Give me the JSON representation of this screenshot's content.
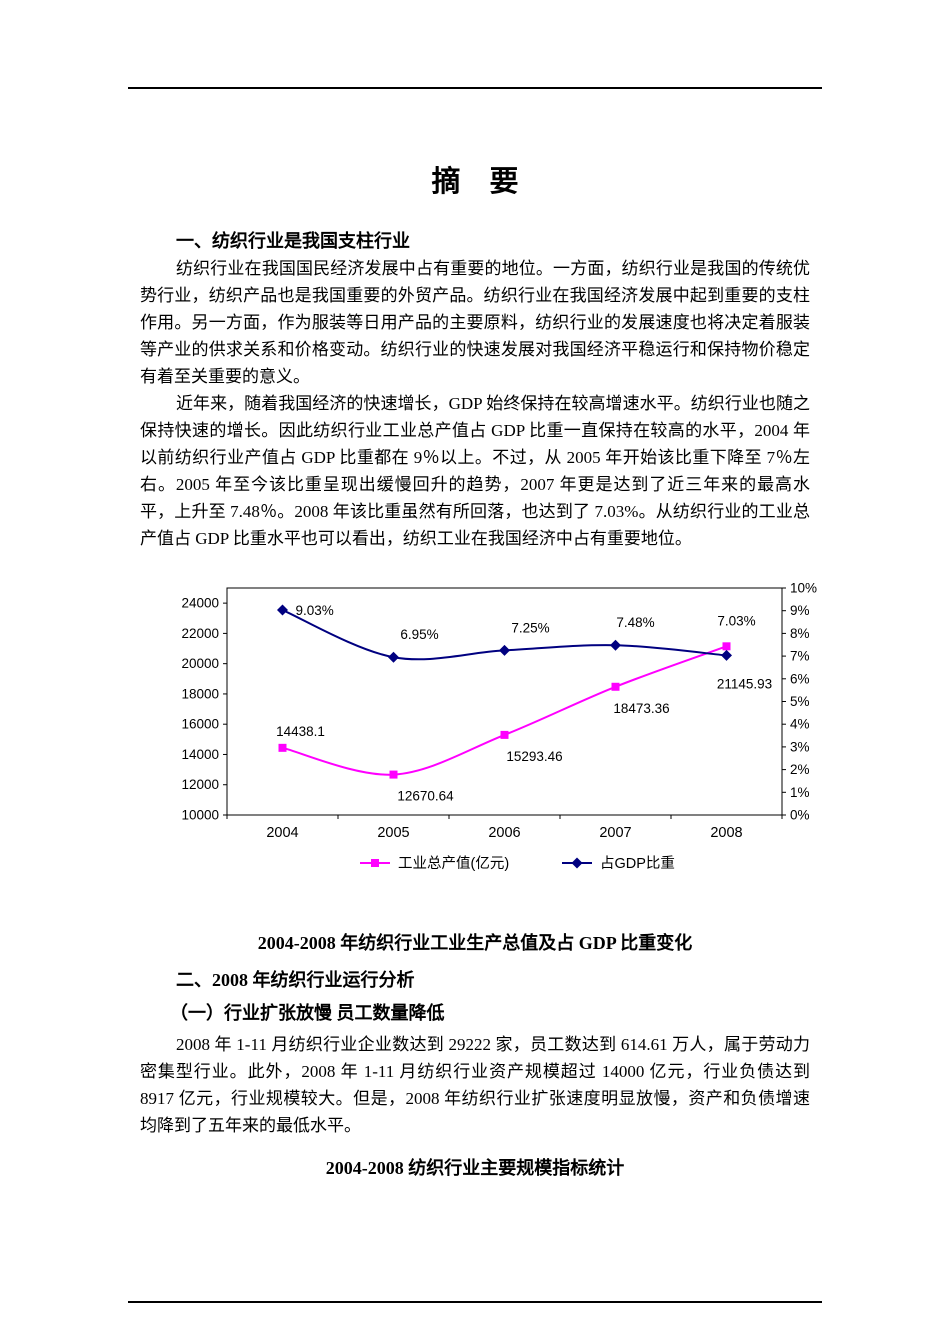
{
  "doc": {
    "title": "摘　要",
    "section1_heading": "一、纺织行业是我国支柱行业",
    "para1": "纺织行业在我国国民经济发展中占有重要的地位。一方面，纺织行业是我国的传统优势行业，纺织产品也是我国重要的外贸产品。纺织行业在我国经济发展中起到重要的支柱作用。另一方面，作为服装等日用产品的主要原料，纺织行业的发展速度也将决定着服装等产业的供求关系和价格变动。纺织行业的快速发展对我国经济平稳运行和保持物价稳定有着至关重要的意义。",
    "para2": "近年来，随着我国经济的快速增长，GDP 始终保持在较高增速水平。纺织行业也随之保持快速的增长。因此纺织行业工业总产值占 GDP 比重一直保持在较高的水平，2004 年以前纺织行业产值占 GDP 比重都在 9％以上。不过，从 2005 年开始该比重下降至 7％左右。2005 年至今该比重呈现出缓慢回升的趋势，2007 年更是达到了近三年来的最高水平，上升至 7.48％。2008 年该比重虽然有所回落，也达到了 7.03%。从纺织行业的工业总产值占 GDP 比重水平也可以看出，纺织工业在我国经济中占有重要地位。",
    "section2_heading": "二、2008 年纺织行业运行分析",
    "section2_sub_heading": "（一）行业扩张放慢 员工数量降低",
    "para3": "2008 年 1-11 月纺织行业企业数达到 29222 家，员工数达到 614.61 万人，属于劳动力密集型行业。此外，2008 年 1-11 月纺织行业资产规模超过 14000 亿元，行业负债达到 8917 亿元，行业规模较大。但是，2008 年纺织行业扩张速度明显放慢，资产和负债增速均降到了五年来的最低水平。",
    "table_title": "2004-2008 纺织行业主要规模指标统计"
  },
  "chart_data": {
    "type": "line",
    "title": "2004-2008 年纺织行业工业生产总值及占 GDP 比重变化",
    "categories": [
      "2004",
      "2005",
      "2006",
      "2007",
      "2008"
    ],
    "series": [
      {
        "name": "工业总产值(亿元)",
        "axis": "left",
        "color": "#FF00FF",
        "marker": "square",
        "values": [
          14438.1,
          12670.64,
          15293.46,
          18473.36,
          21145.93
        ],
        "labels": [
          "14438.1",
          "12670.64",
          "15293.46",
          "18473.36",
          "21145.93"
        ],
        "label_offsets": [
          [
            18,
            -12,
            "middle"
          ],
          [
            32,
            26,
            "middle"
          ],
          [
            30,
            26,
            "middle"
          ],
          [
            26,
            26,
            "middle"
          ],
          [
            18,
            42,
            "middle"
          ]
        ]
      },
      {
        "name": "占GDP比重",
        "axis": "right",
        "color": "#000080",
        "marker": "diamond",
        "values": [
          9.03,
          6.95,
          7.25,
          7.48,
          7.03
        ],
        "labels": [
          "9.03%",
          "6.95%",
          "7.25%",
          "7.48%",
          "7.03%"
        ],
        "label_offsets": [
          [
            13,
            5,
            "start"
          ],
          [
            26,
            -18,
            "middle"
          ],
          [
            26,
            -18,
            "middle"
          ],
          [
            20,
            -18,
            "middle"
          ],
          [
            10,
            -30,
            "middle"
          ]
        ]
      }
    ],
    "left_axis": {
      "min": 10000,
      "max": 25000,
      "tick_values": [
        10000,
        12000,
        14000,
        16000,
        18000,
        20000,
        22000,
        24000
      ],
      "tick_labels": [
        "10000",
        "12000",
        "14000",
        "16000",
        "18000",
        "20000",
        "22000",
        "24000"
      ]
    },
    "right_axis": {
      "min": 0,
      "max": 10,
      "tick_values": [
        0,
        1,
        2,
        3,
        4,
        5,
        6,
        7,
        8,
        9,
        10
      ],
      "tick_labels": [
        "0%",
        "1%",
        "2%",
        "3%",
        "4%",
        "5%",
        "6%",
        "7%",
        "8%",
        "9%",
        "10%"
      ]
    },
    "legend": [
      "工业总产值(亿元)",
      "占GDP比重"
    ],
    "legend_position": "bottom",
    "grid": false
  }
}
